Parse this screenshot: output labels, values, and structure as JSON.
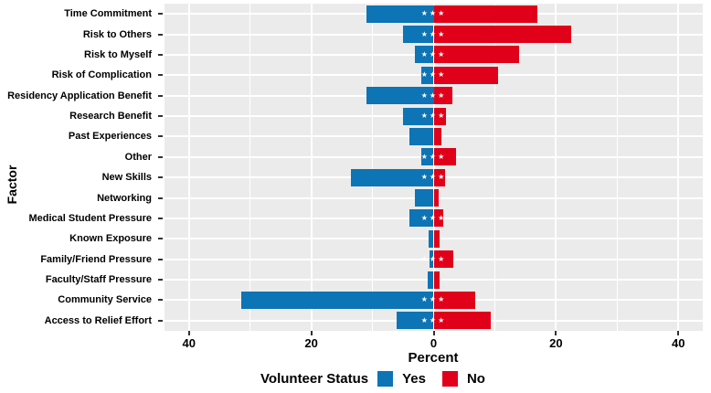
{
  "figure": {
    "y_axis_title": "Factor",
    "x_axis_title": "Percent",
    "x_tick_labels": [
      "40",
      "20",
      "0",
      "20",
      "40"
    ],
    "significance_marker": "★★★",
    "legend": {
      "title": "Volunteer Status",
      "items": [
        {
          "label": "Yes",
          "color": "#0D74B5"
        },
        {
          "label": "No",
          "color": "#E00019"
        }
      ]
    }
  },
  "chart_data": {
    "type": "bar",
    "orientation": "horizontal-diverging",
    "title": "",
    "xlabel": "Percent",
    "ylabel": "Factor",
    "xlim": [
      -44,
      44
    ],
    "x_major_ticks": [
      -40,
      -20,
      0,
      20,
      40
    ],
    "x_minor_ticks": [
      -30,
      -10,
      10,
      30
    ],
    "grid": true,
    "panel_background": "#EBEBEB",
    "gridline_color": "#FFFFFF",
    "legend_position": "bottom",
    "categories": [
      "Time Commitment",
      "Risk to Others",
      "Risk to Myself",
      "Risk of Complication",
      "Residency Application Benefit",
      "Research Benefit",
      "Past Experiences",
      "Other",
      "New Skills",
      "Networking",
      "Medical Student Pressure",
      "Known Exposure",
      "Family/Friend Pressure",
      "Faculty/Staff Pressure",
      "Community Service",
      "Access to Relief Effort"
    ],
    "series": [
      {
        "name": "Yes",
        "side": "left",
        "color": "#0D74B5",
        "values": [
          11,
          5,
          3,
          2,
          11,
          5,
          4,
          2,
          13.5,
          3,
          4,
          0.8,
          0.7,
          1,
          31.5,
          6
        ]
      },
      {
        "name": "No",
        "side": "right",
        "color": "#E00019",
        "values": [
          17,
          22.5,
          14,
          10.5,
          3,
          2,
          1.2,
          3.7,
          1.8,
          0.8,
          1.5,
          0.9,
          3.2,
          1,
          6.8,
          9.3
        ]
      }
    ],
    "significant": [
      true,
      true,
      true,
      true,
      true,
      true,
      false,
      true,
      true,
      false,
      true,
      false,
      true,
      false,
      true,
      true
    ],
    "units": "percent"
  }
}
